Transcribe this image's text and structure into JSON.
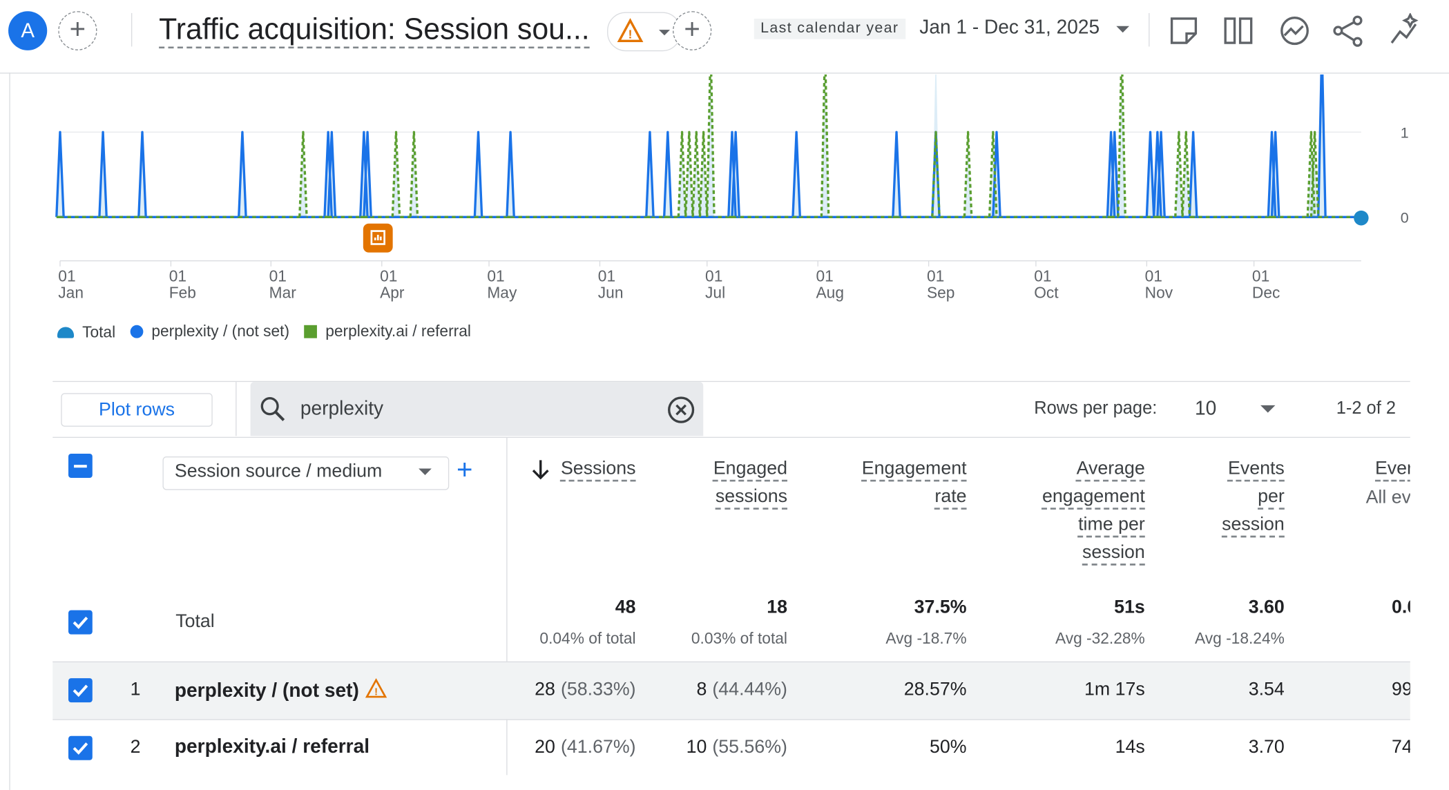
{
  "header": {
    "avatar": "A",
    "title": "Traffic acquisition: Session sou...",
    "date_label": "Last calendar year",
    "date_range": "Jan 1 - Dec 31, 2025"
  },
  "chart_data": {
    "type": "line",
    "x": [
      "2025-01-01",
      "2025-01-13",
      "2025-01-24",
      "2025-02-21",
      "2025-03-10",
      "2025-03-17",
      "2025-03-18",
      "2025-03-27",
      "2025-03-28",
      "2025-04-05",
      "2025-04-10",
      "2025-04-28",
      "2025-05-07",
      "2025-06-15",
      "2025-06-20",
      "2025-06-24",
      "2025-06-26",
      "2025-06-28",
      "2025-06-30",
      "2025-07-02",
      "2025-07-08",
      "2025-07-09",
      "2025-07-26",
      "2025-08-03",
      "2025-08-23",
      "2025-09-03",
      "2025-09-12",
      "2025-09-19",
      "2025-09-20",
      "2025-10-22",
      "2025-10-23",
      "2025-10-25",
      "2025-11-02",
      "2025-11-04",
      "2025-11-05",
      "2025-11-10",
      "2025-11-12",
      "2025-11-14",
      "2025-12-06",
      "2025-12-07",
      "2025-12-17",
      "2025-12-18",
      "2025-12-20"
    ],
    "series": [
      {
        "name": "Total",
        "color": "#1e88c8",
        "values": [
          1,
          1,
          1,
          1,
          1,
          1,
          1,
          1,
          1,
          1,
          1,
          1,
          1,
          1,
          1,
          1,
          1,
          1,
          1,
          2,
          1,
          1,
          1,
          2,
          1,
          2,
          1,
          1,
          1,
          1,
          1,
          2,
          1,
          1,
          1,
          1,
          1,
          1,
          1,
          1,
          1,
          1,
          2
        ]
      },
      {
        "name": "perplexity / (not set)",
        "color": "#1a73e8",
        "values": [
          1,
          1,
          1,
          1,
          0,
          1,
          1,
          1,
          1,
          0,
          0,
          1,
          1,
          1,
          1,
          0,
          0,
          0,
          0,
          0,
          1,
          1,
          1,
          0,
          1,
          1,
          0,
          0,
          1,
          1,
          1,
          0,
          1,
          1,
          1,
          0,
          0,
          1,
          1,
          1,
          0,
          0,
          2
        ]
      },
      {
        "name": "perplexity.ai / referral",
        "color": "#5a9e2f",
        "values": [
          0,
          0,
          0,
          0,
          1,
          0,
          0,
          0,
          0,
          1,
          1,
          0,
          0,
          0,
          0,
          1,
          1,
          1,
          1,
          2,
          0,
          0,
          0,
          2,
          0,
          1,
          1,
          1,
          0,
          0,
          0,
          2,
          0,
          0,
          0,
          1,
          1,
          0,
          0,
          0,
          1,
          1,
          0
        ]
      }
    ],
    "xlim": [
      "2025-01-01",
      "2025-12-31"
    ],
    "xticks": [
      {
        "value": "2025-01-01",
        "label": "01 Jan"
      },
      {
        "value": "2025-02-01",
        "label": "01 Feb"
      },
      {
        "value": "2025-03-01",
        "label": "01 Mar"
      },
      {
        "value": "2025-04-01",
        "label": "01 Apr"
      },
      {
        "value": "2025-05-01",
        "label": "01 May"
      },
      {
        "value": "2025-06-01",
        "label": "01 Jun"
      },
      {
        "value": "2025-07-01",
        "label": "01 Jul"
      },
      {
        "value": "2025-08-01",
        "label": "01 Aug"
      },
      {
        "value": "2025-09-01",
        "label": "01 Sep"
      },
      {
        "value": "2025-10-01",
        "label": "01 Oct"
      },
      {
        "value": "2025-11-01",
        "label": "01 Nov"
      },
      {
        "value": "2025-12-01",
        "label": "01 Dec"
      }
    ],
    "ylim": [
      0,
      1.7
    ],
    "yticks": [
      0,
      1
    ],
    "grid": true
  },
  "toolbar": {
    "plot_rows": "Plot rows",
    "search": "perplexity",
    "rows_label": "Rows per page:",
    "rows_value": "10",
    "pagination": "1-2 of 2"
  },
  "table": {
    "dimension": "Session source / medium",
    "columns": [
      {
        "title": "Sessions"
      },
      {
        "title": "Engaged sessions"
      },
      {
        "title": "Engagement rate"
      },
      {
        "title": "Average engagement time per session"
      },
      {
        "title": "Events per session"
      },
      {
        "title": "Ever",
        "subtitle": "All ev"
      }
    ],
    "total": {
      "label": "Total",
      "values": [
        "48",
        "18",
        "37.5%",
        "51s",
        "3.60",
        "0.0"
      ],
      "notes": [
        "0.04% of total",
        "0.03% of total",
        "Avg -18.7%",
        "Avg -32.28%",
        "Avg -18.24%"
      ]
    },
    "rows": [
      {
        "index": "1",
        "name": "perplexity / (not set)",
        "cells": [
          [
            "28",
            "(58.33%)"
          ],
          [
            "8",
            "(44.44%)"
          ],
          [
            "28.57%"
          ],
          [
            "1m 17s"
          ],
          [
            "3.54"
          ],
          [
            "99"
          ]
        ]
      },
      {
        "index": "2",
        "name": "perplexity.ai / referral",
        "cells": [
          [
            "20",
            "(41.67%)"
          ],
          [
            "10",
            "(55.56%)"
          ],
          [
            "50%"
          ],
          [
            "14s"
          ],
          [
            "3.70"
          ],
          [
            "74"
          ]
        ]
      }
    ]
  }
}
